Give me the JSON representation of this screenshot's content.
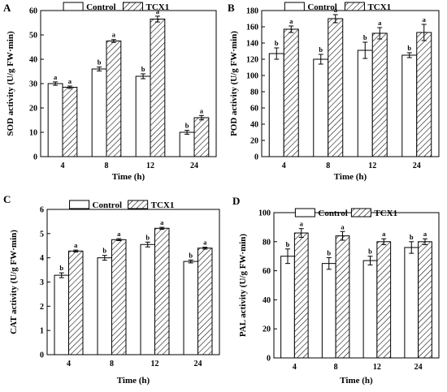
{
  "chart_data": [
    {
      "type": "bar",
      "panel": "A",
      "xlabel": "Time (h)",
      "ylabel": "SOD activity (U/g FW·min)",
      "categories": [
        "4",
        "8",
        "12",
        "24"
      ],
      "ylim": [
        0,
        60
      ],
      "yticks": [
        0,
        10,
        20,
        30,
        40,
        50,
        60
      ],
      "series": [
        {
          "name": "Control",
          "values": [
            30,
            36,
            33,
            10
          ],
          "errors": [
            0.7,
            0.8,
            1.0,
            0.8
          ],
          "labels": [
            "a",
            "b",
            "b",
            "b"
          ]
        },
        {
          "name": "TCX1",
          "values": [
            28.5,
            47.5,
            56.5,
            16
          ],
          "errors": [
            0.5,
            0.6,
            1.2,
            0.9
          ],
          "labels": [
            "a",
            "a",
            "a",
            "a"
          ]
        }
      ]
    },
    {
      "type": "bar",
      "panel": "B",
      "xlabel": "Time (h)",
      "ylabel": "POD activity (U/g FW·min)",
      "categories": [
        "4",
        "8",
        "12",
        "24"
      ],
      "ylim": [
        0,
        180
      ],
      "yticks": [
        0,
        20,
        40,
        60,
        80,
        100,
        120,
        140,
        160,
        180
      ],
      "series": [
        {
          "name": "Control",
          "values": [
            127,
            120,
            131,
            125
          ],
          "errors": [
            7,
            6,
            10,
            3
          ],
          "labels": [
            "b",
            "b",
            "b",
            "b"
          ]
        },
        {
          "name": "TCX1",
          "values": [
            157,
            170,
            152,
            153
          ],
          "errors": [
            4,
            5,
            7,
            10
          ],
          "labels": [
            "a",
            "a",
            "a",
            "a"
          ]
        }
      ]
    },
    {
      "type": "bar",
      "panel": "C",
      "xlabel": "Time (h)",
      "ylabel": "CAT activity (U/g FW·min)",
      "categories": [
        "4",
        "8",
        "12",
        "24"
      ],
      "ylim": [
        0,
        6
      ],
      "yticks": [
        0,
        1,
        2,
        3,
        4,
        5,
        6
      ],
      "series": [
        {
          "name": "Control",
          "values": [
            3.28,
            4.0,
            4.55,
            3.85
          ],
          "errors": [
            0.1,
            0.1,
            0.1,
            0.06
          ],
          "labels": [
            "b",
            "b",
            "b",
            "b"
          ]
        },
        {
          "name": "TCX1",
          "values": [
            4.28,
            4.75,
            5.22,
            4.4
          ],
          "errors": [
            0.04,
            0.04,
            0.04,
            0.04
          ],
          "labels": [
            "a",
            "a",
            "a",
            "a"
          ]
        }
      ]
    },
    {
      "type": "bar",
      "panel": "D",
      "xlabel": "Time (h)",
      "ylabel": "PAL activity (U/g FW·min)",
      "categories": [
        "4",
        "8",
        "12",
        "24"
      ],
      "ylim": [
        0,
        100
      ],
      "yticks": [
        0,
        20,
        40,
        60,
        80,
        100
      ],
      "series": [
        {
          "name": "Control",
          "values": [
            70,
            65,
            67,
            76
          ],
          "errors": [
            5,
            4,
            3,
            4
          ],
          "labels": [
            "b",
            "b",
            "b",
            "b"
          ]
        },
        {
          "name": "TCX1",
          "values": [
            86,
            84,
            80,
            80
          ],
          "errors": [
            3,
            3,
            2,
            2
          ],
          "labels": [
            "a",
            "a",
            "a",
            "a"
          ]
        }
      ]
    }
  ]
}
